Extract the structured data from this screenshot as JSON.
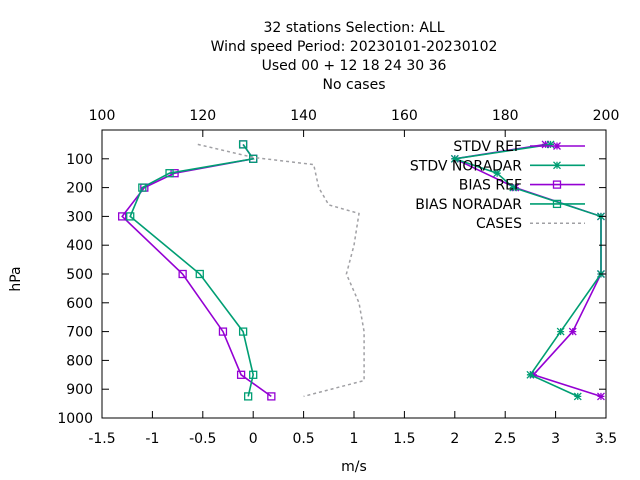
{
  "chart_data": {
    "type": "line",
    "title_lines": [
      "32 stations Selection: ALL",
      "Wind speed  Period: 20230101-20230102",
      "Used  00 + 12 18 24 30 36",
      "No cases"
    ],
    "xlabel": "m/s",
    "ylabel": "hPa",
    "xlim": [
      -1.5,
      3.5
    ],
    "x2lim": [
      100,
      200
    ],
    "ylim": [
      1000,
      0
    ],
    "x_ticks": [
      "-1.5",
      "-1",
      "-0.5",
      "0",
      "0.5",
      "1",
      "1.5",
      "2",
      "2.5",
      "3",
      "3.5"
    ],
    "x2_ticks": [
      "100",
      "120",
      "140",
      "160",
      "180",
      "200"
    ],
    "y_ticks": [
      "100",
      "200",
      "300",
      "400",
      "500",
      "600",
      "700",
      "800",
      "900",
      "1000"
    ],
    "legend_position": "top-right",
    "grid": false,
    "series": [
      {
        "name": "STDV REF",
        "color": "#9400d3",
        "marker": "x",
        "axis": "x",
        "points": [
          [
            2.9,
            50
          ],
          [
            2.0,
            100
          ],
          [
            2.6,
            200
          ],
          [
            3.45,
            300
          ],
          [
            3.45,
            500
          ],
          [
            3.17,
            700
          ],
          [
            2.78,
            850
          ],
          [
            3.45,
            925
          ]
        ]
      },
      {
        "name": "STDV NORADAR",
        "color": "#009e73",
        "marker": "x",
        "axis": "x",
        "points": [
          [
            2.95,
            50
          ],
          [
            2.0,
            100
          ],
          [
            2.42,
            150
          ],
          [
            2.58,
            200
          ],
          [
            3.45,
            300
          ],
          [
            3.45,
            500
          ],
          [
            3.05,
            700
          ],
          [
            2.75,
            850
          ],
          [
            3.22,
            925
          ]
        ]
      },
      {
        "name": "BIAS REF",
        "color": "#9400d3",
        "marker": "square",
        "axis": "x",
        "points": [
          [
            -0.1,
            50
          ],
          [
            0.0,
            100
          ],
          [
            -0.78,
            150
          ],
          [
            -1.08,
            200
          ],
          [
            -1.3,
            300
          ],
          [
            -0.7,
            500
          ],
          [
            -0.3,
            700
          ],
          [
            -0.12,
            850
          ],
          [
            0.18,
            925
          ]
        ]
      },
      {
        "name": "BIAS NORADAR",
        "color": "#009e73",
        "marker": "square",
        "axis": "x",
        "points": [
          [
            -0.1,
            50
          ],
          [
            0.0,
            100
          ],
          [
            -0.83,
            150
          ],
          [
            -1.1,
            200
          ],
          [
            -1.22,
            300
          ],
          [
            -0.53,
            500
          ],
          [
            -0.1,
            700
          ],
          [
            0.0,
            850
          ],
          [
            -0.05,
            925
          ]
        ]
      },
      {
        "name": "CASES",
        "color": "#a0a0a4",
        "dash": true,
        "axis": "x2",
        "points": [
          [
            119,
            50
          ],
          [
            130,
            95
          ],
          [
            142,
            120
          ],
          [
            143,
            200
          ],
          [
            145,
            260
          ],
          [
            151,
            290
          ],
          [
            150,
            400
          ],
          [
            148.5,
            500
          ],
          [
            151,
            600
          ],
          [
            152,
            700
          ],
          [
            152,
            870
          ],
          [
            140,
            925
          ]
        ]
      }
    ]
  }
}
